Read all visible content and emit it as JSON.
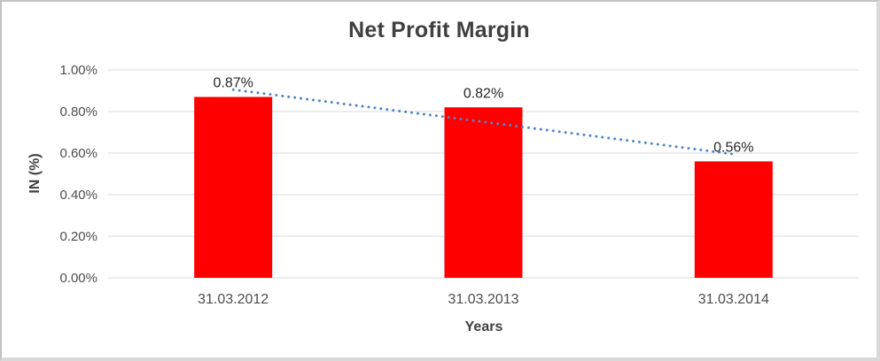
{
  "chart_data": {
    "type": "bar",
    "title": "Net Profit Margin",
    "categories": [
      "31.03.2012",
      "31.03.2013",
      "31.03.2014"
    ],
    "values": [
      0.87,
      0.82,
      0.56
    ],
    "data_labels": [
      "0.87%",
      "0.82%",
      "0.56%"
    ],
    "xlabel": "Years",
    "ylabel": "IN (%)",
    "y_min": 0,
    "y_max": 1,
    "ytick_labels": [
      "0.00%",
      "0.20%",
      "0.40%",
      "0.60%",
      "0.80%",
      "1.00%"
    ],
    "grid": true,
    "legend": "none",
    "colors": {
      "bar": "#ff0000",
      "trendline": "#4e87c6",
      "gridline": "#d9d9d9",
      "title_text": "#3f3f3f",
      "axis_text": "#4d4d4d",
      "data_label_text": "#262626"
    },
    "trendline": {
      "type": "linear",
      "style": "dotted",
      "start_value": 0.905,
      "end_value": 0.595
    }
  }
}
